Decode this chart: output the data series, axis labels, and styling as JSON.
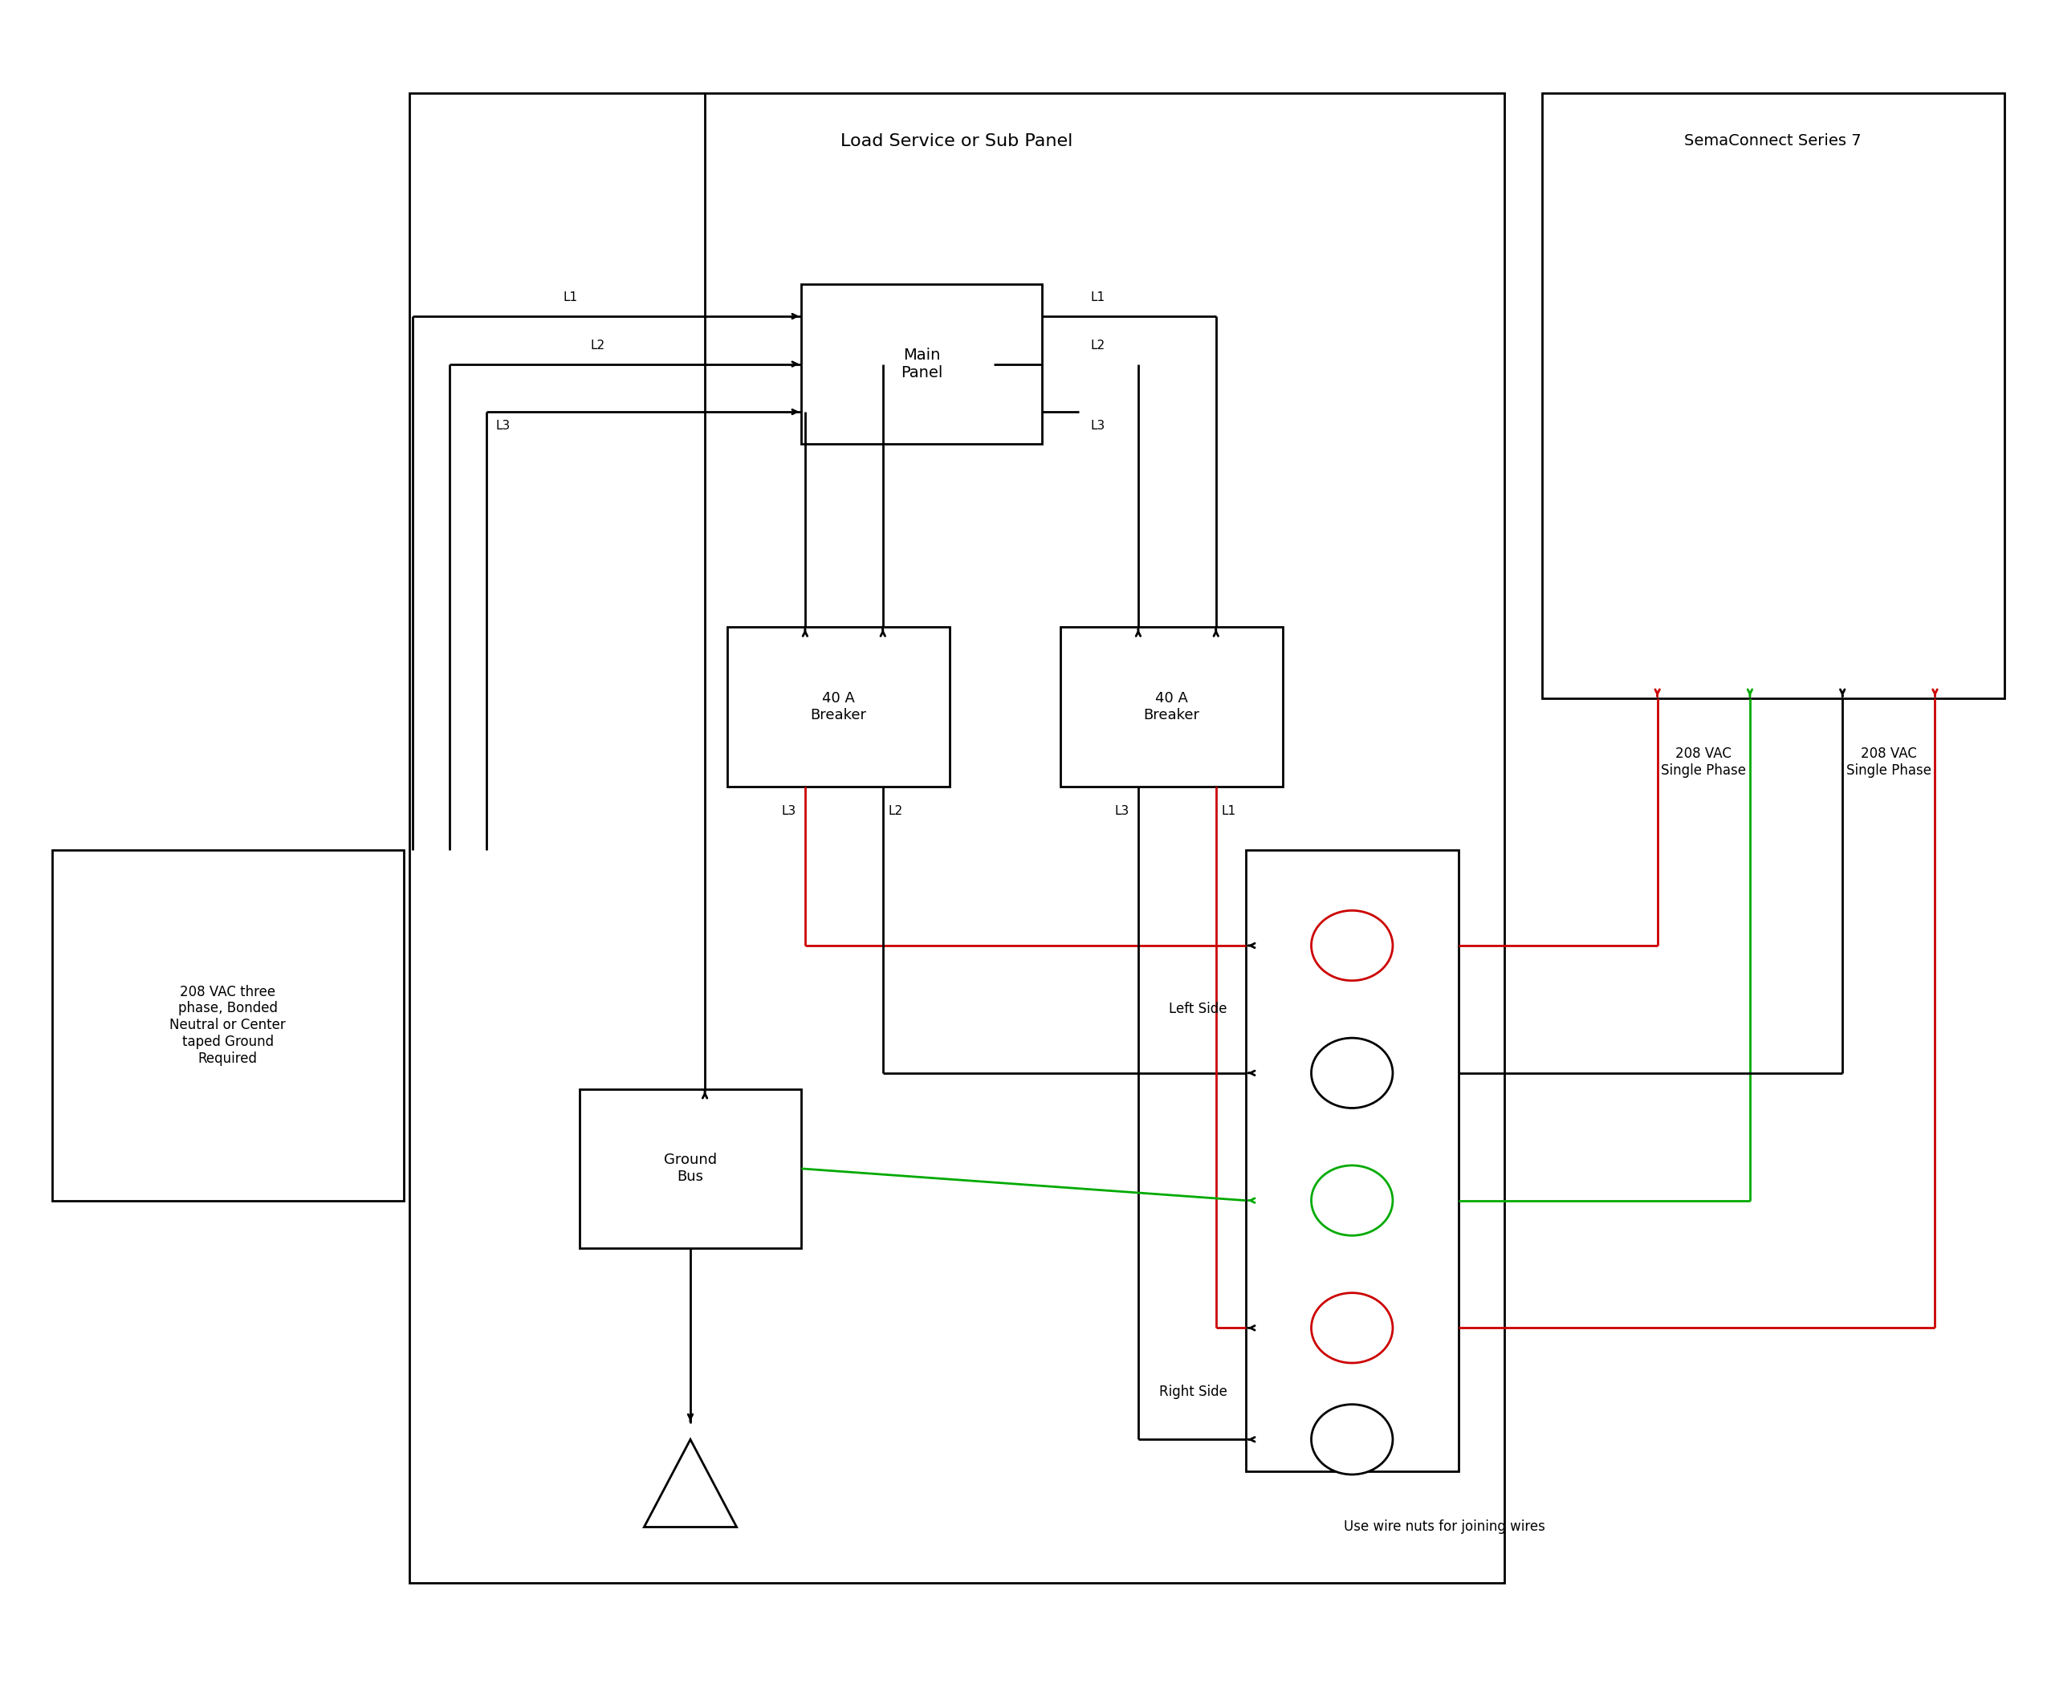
{
  "bg_color": "#ffffff",
  "line_color": "#000000",
  "red_color": "#cc0000",
  "green_color": "#00aa00",
  "fig_width": 25.5,
  "fig_height": 20.98,
  "title": "Load Service or Sub Panel",
  "sema_label": "SemaConnect Series 7",
  "vac_208_text": "208 VAC three\nphase, Bonded\nNeutral or Center\ntaped Ground\nRequired",
  "main_panel_label": "Main\nPanel",
  "breaker1_label": "40 A\nBreaker",
  "breaker2_label": "40 A\nBreaker",
  "ground_bus_label": "Ground\nBus",
  "left_side_label": "Left Side",
  "right_side_label": "Right Side",
  "vac_single_left": "208 VAC\nSingle Phase",
  "vac_single_right": "208 VAC\nSingle Phase",
  "wire_nuts_label": "Use wire nuts for joining wires",
  "lw": 2.0
}
